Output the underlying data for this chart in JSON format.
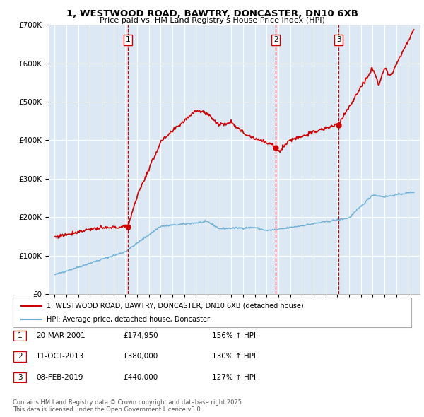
{
  "title": "1, WESTWOOD ROAD, BAWTRY, DONCASTER, DN10 6XB",
  "subtitle": "Price paid vs. HM Land Registry's House Price Index (HPI)",
  "background_color": "#dce9f5",
  "sale_dates": [
    2001.22,
    2013.78,
    2019.12
  ],
  "sale_prices": [
    174950,
    380000,
    440000
  ],
  "sale_labels": [
    "1",
    "2",
    "3"
  ],
  "legend_line1": "1, WESTWOOD ROAD, BAWTRY, DONCASTER, DN10 6XB (detached house)",
  "legend_line2": "HPI: Average price, detached house, Doncaster",
  "table": [
    [
      "1",
      "20-MAR-2001",
      "£174,950",
      "156% ↑ HPI"
    ],
    [
      "2",
      "11-OCT-2013",
      "£380,000",
      "130% ↑ HPI"
    ],
    [
      "3",
      "08-FEB-2019",
      "£440,000",
      "127% ↑ HPI"
    ]
  ],
  "footnote": "Contains HM Land Registry data © Crown copyright and database right 2025.\nThis data is licensed under the Open Government Licence v3.0.",
  "hpi_line_color": "#6baed6",
  "price_line_color": "#cc0000",
  "vline_color": "#cc0000",
  "ylim": [
    0,
    700000
  ],
  "xlim": [
    1994.5,
    2026.0
  ]
}
